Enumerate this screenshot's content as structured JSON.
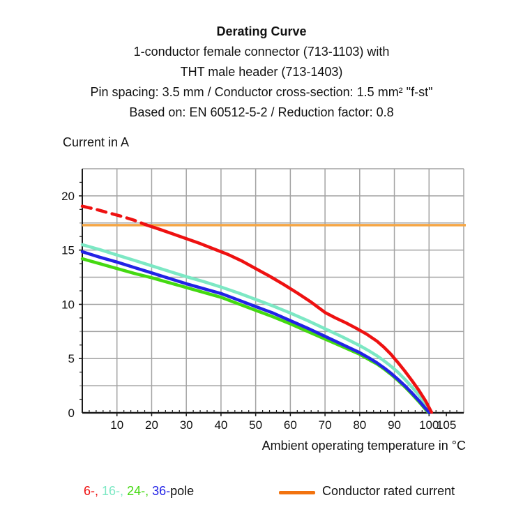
{
  "header": {
    "title": "Derating Curve",
    "subtitle_lines": [
      "1-conductor female connector (713-1103) with",
      "THT male header (713-1403)",
      "Pin spacing: 3.5 mm / Conductor cross-section: 1.5 mm² \"f-st\"",
      "Based on: EN 60512-5-2 / Reduction factor: 0.8"
    ]
  },
  "chart_data": {
    "type": "line",
    "title": "Derating Curve",
    "ylabel": "Current in A",
    "xlabel": "Ambient operating temperature in °C",
    "xlim": [
      0,
      110
    ],
    "ylim": [
      0,
      22.5
    ],
    "xticks": [
      10,
      20,
      30,
      40,
      50,
      60,
      70,
      80,
      90,
      100,
      105
    ],
    "yticks": [
      0,
      5,
      10,
      15,
      20
    ],
    "x_gridlines": [
      10,
      20,
      30,
      40,
      50,
      60,
      70,
      80,
      90,
      100
    ],
    "y_grid_step": 2.5,
    "grid": true,
    "grid_color": "#a3a3a3",
    "axis_color": "#1a1a1a",
    "rated_current": {
      "label": "Conductor rated current",
      "value": 17.3,
      "line_color": "#F5A645",
      "legend_color": "#F2730F"
    },
    "series": [
      {
        "name": "16-pole",
        "color": "#7CE8C4",
        "points": [
          [
            0,
            15.5
          ],
          [
            5,
            15.05
          ],
          [
            10,
            14.55
          ],
          [
            15,
            14.05
          ],
          [
            20,
            13.55
          ],
          [
            25,
            13.05
          ],
          [
            30,
            12.55
          ],
          [
            35,
            12.1
          ],
          [
            40,
            11.6
          ],
          [
            45,
            11.05
          ],
          [
            50,
            10.45
          ],
          [
            55,
            9.85
          ],
          [
            60,
            9.2
          ],
          [
            65,
            8.5
          ],
          [
            70,
            7.75
          ],
          [
            75,
            7.0
          ],
          [
            80,
            6.2
          ],
          [
            83,
            5.65
          ],
          [
            85,
            5.25
          ],
          [
            87,
            4.8
          ],
          [
            89,
            4.3
          ],
          [
            91,
            3.75
          ],
          [
            93,
            3.1
          ],
          [
            95,
            2.4
          ],
          [
            97,
            1.65
          ],
          [
            99,
            0.8
          ],
          [
            100.4,
            0.05
          ]
        ]
      },
      {
        "name": "24-pole",
        "color": "#44D911",
        "points": [
          [
            0,
            14.2
          ],
          [
            5,
            13.75
          ],
          [
            10,
            13.3
          ],
          [
            15,
            12.85
          ],
          [
            20,
            12.45
          ],
          [
            25,
            12.0
          ],
          [
            30,
            11.55
          ],
          [
            35,
            11.1
          ],
          [
            40,
            10.65
          ],
          [
            45,
            10.05
          ],
          [
            50,
            9.45
          ],
          [
            55,
            8.85
          ],
          [
            60,
            8.2
          ],
          [
            65,
            7.5
          ],
          [
            70,
            6.8
          ],
          [
            75,
            6.1
          ],
          [
            80,
            5.4
          ],
          [
            83,
            4.85
          ],
          [
            85,
            4.5
          ],
          [
            87,
            4.05
          ],
          [
            89,
            3.55
          ],
          [
            91,
            3.0
          ],
          [
            93,
            2.4
          ],
          [
            95,
            1.75
          ],
          [
            97,
            1.05
          ],
          [
            99,
            0.3
          ],
          [
            99.9,
            0
          ]
        ]
      },
      {
        "name": "36-pole",
        "color": "#2222E6",
        "points": [
          [
            0,
            14.85
          ],
          [
            5,
            14.35
          ],
          [
            10,
            13.9
          ],
          [
            15,
            13.4
          ],
          [
            20,
            12.9
          ],
          [
            25,
            12.4
          ],
          [
            30,
            11.9
          ],
          [
            35,
            11.45
          ],
          [
            40,
            11.0
          ],
          [
            45,
            10.4
          ],
          [
            50,
            9.8
          ],
          [
            55,
            9.2
          ],
          [
            60,
            8.5
          ],
          [
            65,
            7.8
          ],
          [
            70,
            7.05
          ],
          [
            75,
            6.3
          ],
          [
            80,
            5.55
          ],
          [
            83,
            5.0
          ],
          [
            85,
            4.6
          ],
          [
            87,
            4.15
          ],
          [
            89,
            3.65
          ],
          [
            91,
            3.1
          ],
          [
            93,
            2.5
          ],
          [
            95,
            1.85
          ],
          [
            97,
            1.15
          ],
          [
            99,
            0.4
          ],
          [
            100.1,
            0
          ]
        ]
      },
      {
        "name": "6-pole",
        "color": "#EE1111",
        "dashed_points": [
          [
            0,
            19.05
          ],
          [
            4,
            18.75
          ],
          [
            8,
            18.4
          ],
          [
            12,
            18.05
          ],
          [
            15,
            17.75
          ],
          [
            18.5,
            17.32
          ]
        ],
        "points": [
          [
            18.5,
            17.32
          ],
          [
            22,
            16.95
          ],
          [
            26,
            16.5
          ],
          [
            30,
            16.05
          ],
          [
            34,
            15.6
          ],
          [
            38,
            15.1
          ],
          [
            42,
            14.6
          ],
          [
            46,
            14.0
          ],
          [
            50,
            13.3
          ],
          [
            54,
            12.6
          ],
          [
            58,
            11.85
          ],
          [
            62,
            11.05
          ],
          [
            66,
            10.2
          ],
          [
            70,
            9.25
          ],
          [
            73,
            8.75
          ],
          [
            76,
            8.3
          ],
          [
            79,
            7.8
          ],
          [
            82,
            7.25
          ],
          [
            85,
            6.6
          ],
          [
            87,
            6.05
          ],
          [
            89,
            5.4
          ],
          [
            91,
            4.65
          ],
          [
            93,
            3.85
          ],
          [
            95,
            3.0
          ],
          [
            97,
            2.1
          ],
          [
            99,
            1.1
          ],
          [
            100.7,
            0.05
          ]
        ]
      }
    ]
  },
  "legend": {
    "pole_items": [
      {
        "label": "6-,",
        "color": "#EE1111"
      },
      {
        "label": "16-,",
        "color": "#7CE8C4"
      },
      {
        "label": "24-,",
        "color": "#44D911"
      },
      {
        "label": "36-",
        "color": "#2222E6"
      }
    ],
    "pole_suffix": "pole",
    "rated_label": "Conductor rated current"
  }
}
